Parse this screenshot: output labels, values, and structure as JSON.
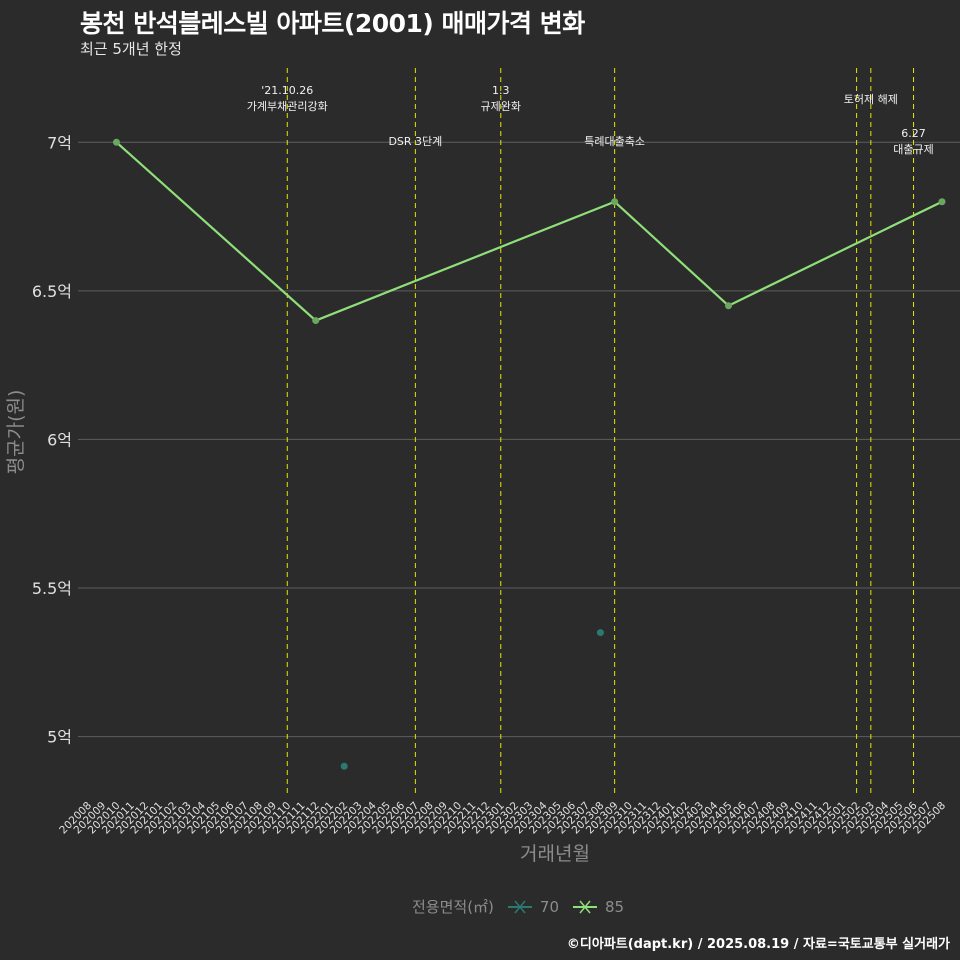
{
  "title": "봉천 반석블레스빌 아파트(2001) 매매가격 변화",
  "subtitle": "최근 5개년 한정",
  "caption": "©디아파트(dapt.kr) / 2025.08.19 / 자료=국토교통부 실거래가",
  "colors": {
    "background": "#2b2b2b",
    "grid": "#5e5e5e",
    "vline": "#e6e600",
    "series_70": "#2a7a72",
    "series_85": "#8fe07a",
    "axis_text": "#8c8c8c"
  },
  "chart_data": {
    "type": "line",
    "title": "봉천 반석블레스빌 아파트(2001) 매매가격 변화",
    "xlabel": "거래년월",
    "ylabel": "평균가(원)",
    "ylim": [
      4.8,
      7.25
    ],
    "categories": [
      "202008",
      "202009",
      "202010",
      "202011",
      "202012",
      "202101",
      "202102",
      "202103",
      "202104",
      "202105",
      "202106",
      "202107",
      "202108",
      "202109",
      "202110",
      "202111",
      "202112",
      "202201",
      "202202",
      "202203",
      "202204",
      "202205",
      "202206",
      "202207",
      "202208",
      "202209",
      "202210",
      "202211",
      "202212",
      "202301",
      "202302",
      "202303",
      "202304",
      "202305",
      "202306",
      "202307",
      "202308",
      "202309",
      "202310",
      "202311",
      "202312",
      "202401",
      "202402",
      "202403",
      "202404",
      "202405",
      "202406",
      "202407",
      "202408",
      "202409",
      "202410",
      "202411",
      "202412",
      "202501",
      "202502",
      "202503",
      "202504",
      "202505",
      "202506",
      "202507",
      "202508"
    ],
    "yticks": [
      5.0,
      5.5,
      6.0,
      6.5,
      7.0
    ],
    "ytick_labels": [
      "5억",
      "5.5억",
      "6억",
      "6.5억",
      "7억"
    ],
    "series": [
      {
        "name": "70",
        "mode": "points",
        "points": [
          {
            "x": "202202",
            "y": 4.9
          },
          {
            "x": "202308",
            "y": 5.35
          }
        ]
      },
      {
        "name": "85",
        "mode": "line",
        "points": [
          {
            "x": "202010",
            "y": 7.0
          },
          {
            "x": "202112",
            "y": 6.4
          },
          {
            "x": "202309",
            "y": 6.8
          },
          {
            "x": "202405",
            "y": 6.45
          },
          {
            "x": "202508",
            "y": 6.8
          }
        ]
      }
    ],
    "events": [
      {
        "x": "202110",
        "label": "'21.10.26\n가계부채관리강화",
        "row": "top"
      },
      {
        "x": "202207",
        "label": "DSR 3단계",
        "row": "mid"
      },
      {
        "x": "202301",
        "label": "1.3\n규제완화",
        "row": "top"
      },
      {
        "x": "202309",
        "label": "특례대출축소",
        "row": "mid"
      },
      {
        "x": "202502",
        "label": "",
        "row": "none"
      },
      {
        "x": "202503",
        "label": "토허제 해제",
        "row": "top2"
      },
      {
        "x": "202506",
        "label": "6.27\n대출규제",
        "row": "low"
      }
    ],
    "legend": {
      "title": "전용면적(㎡)",
      "position": "bottom",
      "items": [
        "70",
        "85"
      ]
    }
  }
}
